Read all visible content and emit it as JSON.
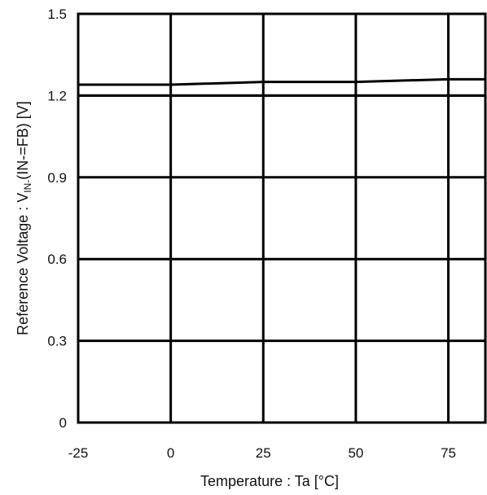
{
  "chart_data": {
    "type": "line",
    "xlabel": "Temperature : Ta [°C]",
    "ylabel": {
      "prefix": "Reference Voltage : V",
      "subscript": "IN-",
      "suffix": "(IN-=FB) [V]"
    },
    "xlim": [
      -25,
      85
    ],
    "ylim": [
      0,
      1.5
    ],
    "xticks": [
      -25,
      0,
      25,
      50,
      75
    ],
    "xtick_labels": [
      "-25",
      "0",
      "25",
      "50",
      "75"
    ],
    "yticks": [
      0,
      0.3,
      0.6,
      0.9,
      1.2,
      1.5
    ],
    "ytick_labels": [
      "0",
      "0.3",
      "0.6",
      "0.9",
      "1.2",
      "1.5"
    ],
    "grid": true,
    "series": [
      {
        "x": [
          -25,
          0,
          25,
          50,
          75,
          85
        ],
        "y": [
          1.24,
          1.24,
          1.25,
          1.25,
          1.26,
          1.26
        ]
      },
      {
        "x": [
          -25,
          85
        ],
        "y": [
          1.2,
          1.2
        ]
      }
    ]
  }
}
